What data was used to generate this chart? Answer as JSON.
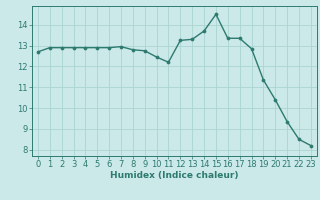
{
  "x": [
    0,
    1,
    2,
    3,
    4,
    5,
    6,
    7,
    8,
    9,
    10,
    11,
    12,
    13,
    14,
    15,
    16,
    17,
    18,
    19,
    20,
    21,
    22,
    23
  ],
  "y": [
    12.7,
    12.9,
    12.9,
    12.9,
    12.9,
    12.9,
    12.9,
    12.95,
    12.8,
    12.75,
    12.45,
    12.2,
    13.25,
    13.3,
    13.7,
    14.5,
    13.35,
    13.35,
    12.85,
    11.35,
    10.4,
    9.35,
    8.5,
    8.2
  ],
  "title": "",
  "xlabel": "Humidex (Indice chaleur)",
  "ylabel": "",
  "xlim": [
    -0.5,
    23.5
  ],
  "ylim": [
    7.7,
    14.9
  ],
  "yticks": [
    8,
    9,
    10,
    11,
    12,
    13,
    14
  ],
  "xticks": [
    0,
    1,
    2,
    3,
    4,
    5,
    6,
    7,
    8,
    9,
    10,
    11,
    12,
    13,
    14,
    15,
    16,
    17,
    18,
    19,
    20,
    21,
    22,
    23
  ],
  "line_color": "#2d7a6e",
  "marker_color": "#2d7a6e",
  "bg_color": "#cce9e9",
  "grid_color": "#aad4d0",
  "axes_color": "#2d7a6e",
  "tick_label_color": "#2d7a6e",
  "xlabel_color": "#2d7a6e",
  "font_size": 6.0,
  "xlabel_font_size": 6.5,
  "line_width": 1.0,
  "marker_size": 2.2
}
